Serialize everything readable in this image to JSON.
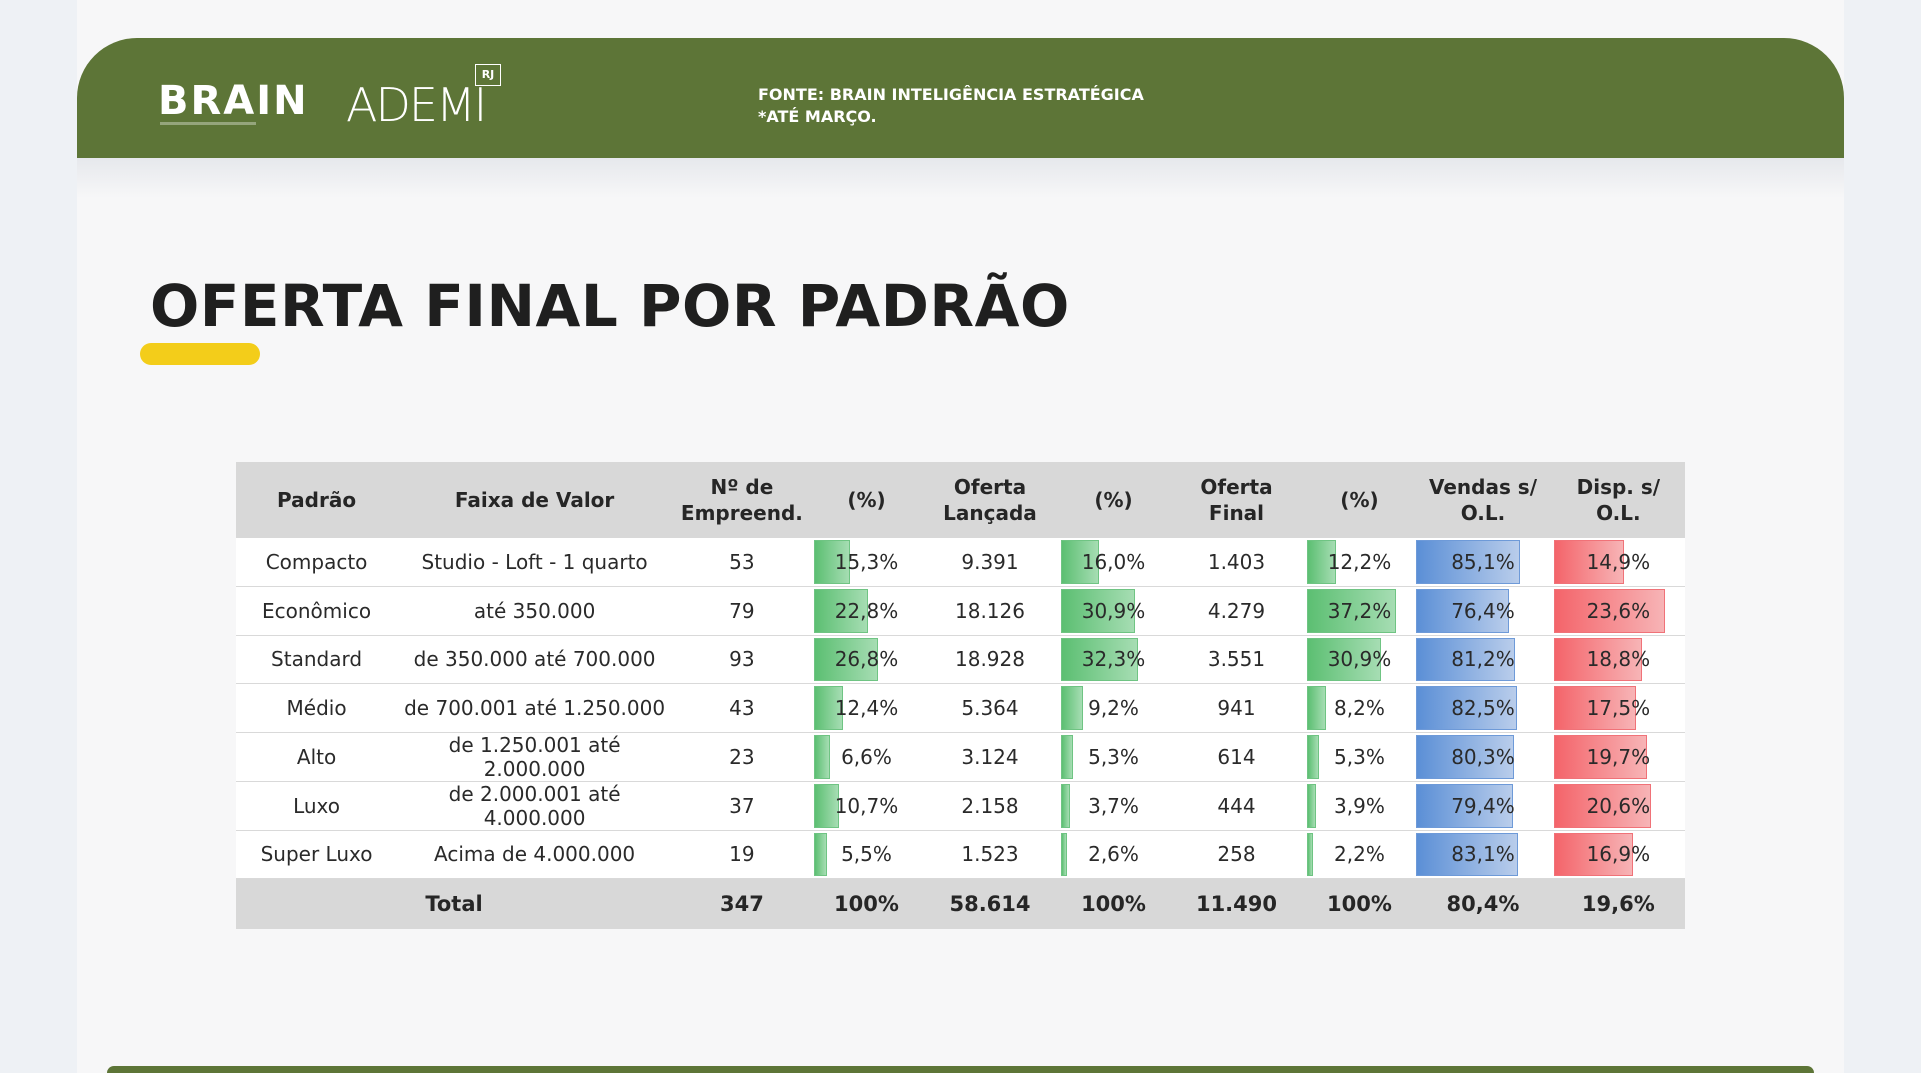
{
  "header": {
    "logo_brain": "BRAIN",
    "logo_ademi": "ADEMI",
    "logo_rj": "RJ",
    "source_line1": "FONTE: BRAIN INTELIGÊNCIA ESTRATÉGICA",
    "source_line2": "*ATÉ MARÇO."
  },
  "page_title": "OFERTA FINAL POR PADRÃO",
  "colors": {
    "header_green": "#5d7537",
    "accent_yellow": "#f3cd1a",
    "bar_green": "#5cbf72",
    "bar_blue": "#5b8fd6",
    "bar_red": "#f4646a"
  },
  "table": {
    "headers": [
      "Padrão",
      "Faixa de Valor",
      "Nº de\nEmpreend.",
      "(%)",
      "Oferta\nLançada",
      "(%)",
      "Oferta\nFinal",
      "(%)",
      "Vendas s/\nO.L.",
      "Disp. s/\nO.L."
    ],
    "rows": [
      {
        "padrao": "Compacto",
        "faixa": "Studio - Loft - 1 quarto",
        "empreend": "53",
        "pct1": "15,3%",
        "oferta_lancada": "9.391",
        "pct2": "16,0%",
        "oferta_final": "1.403",
        "pct3": "12,2%",
        "vendas": "85,1%",
        "disp": "14,9%"
      },
      {
        "padrao": "Econômico",
        "faixa": "até 350.000",
        "empreend": "79",
        "pct1": "22,8%",
        "oferta_lancada": "18.126",
        "pct2": "30,9%",
        "oferta_final": "4.279",
        "pct3": "37,2%",
        "vendas": "76,4%",
        "disp": "23,6%"
      },
      {
        "padrao": "Standard",
        "faixa": "de 350.000 até 700.000",
        "empreend": "93",
        "pct1": "26,8%",
        "oferta_lancada": "18.928",
        "pct2": "32,3%",
        "oferta_final": "3.551",
        "pct3": "30,9%",
        "vendas": "81,2%",
        "disp": "18,8%"
      },
      {
        "padrao": "Médio",
        "faixa": "de 700.001 até 1.250.000",
        "empreend": "43",
        "pct1": "12,4%",
        "oferta_lancada": "5.364",
        "pct2": "9,2%",
        "oferta_final": "941",
        "pct3": "8,2%",
        "vendas": "82,5%",
        "disp": "17,5%"
      },
      {
        "padrao": "Alto",
        "faixa": "de 1.250.001 até 2.000.000",
        "empreend": "23",
        "pct1": "6,6%",
        "oferta_lancada": "3.124",
        "pct2": "5,3%",
        "oferta_final": "614",
        "pct3": "5,3%",
        "vendas": "80,3%",
        "disp": "19,7%"
      },
      {
        "padrao": "Luxo",
        "faixa": "de 2.000.001 até 4.000.000",
        "empreend": "37",
        "pct1": "10,7%",
        "oferta_lancada": "2.158",
        "pct2": "3,7%",
        "oferta_final": "444",
        "pct3": "3,9%",
        "vendas": "79,4%",
        "disp": "20,6%"
      },
      {
        "padrao": "Super Luxo",
        "faixa": "Acima de 4.000.000",
        "empreend": "19",
        "pct1": "5,5%",
        "oferta_lancada": "1.523",
        "pct2": "2,6%",
        "oferta_final": "258",
        "pct3": "2,2%",
        "vendas": "83,1%",
        "disp": "16,9%"
      }
    ],
    "total": {
      "label": "Total",
      "faixa": "",
      "empreend": "347",
      "pct1": "100%",
      "oferta_lancada": "58.614",
      "pct2": "100%",
      "oferta_final": "11.490",
      "pct3": "100%",
      "vendas": "80,4%",
      "disp": "19,6%"
    }
  }
}
